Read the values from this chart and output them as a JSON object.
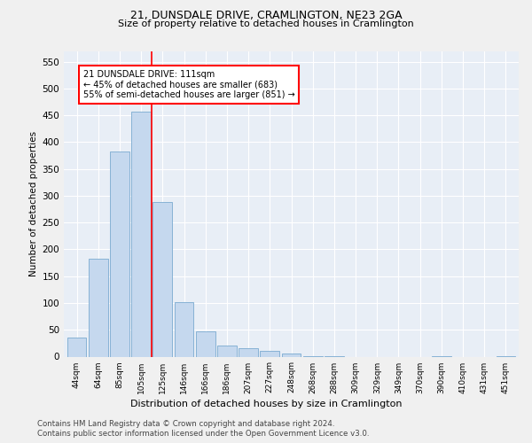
{
  "title": "21, DUNSDALE DRIVE, CRAMLINGTON, NE23 2GA",
  "subtitle": "Size of property relative to detached houses in Cramlington",
  "xlabel": "Distribution of detached houses by size in Cramlington",
  "ylabel": "Number of detached properties",
  "bar_color": "#c5d8ee",
  "bar_edge_color": "#7aaad0",
  "background_color": "#e8eef6",
  "fig_background": "#f0f0f0",
  "categories": [
    "44sqm",
    "64sqm",
    "85sqm",
    "105sqm",
    "125sqm",
    "146sqm",
    "166sqm",
    "186sqm",
    "207sqm",
    "227sqm",
    "248sqm",
    "268sqm",
    "288sqm",
    "309sqm",
    "329sqm",
    "349sqm",
    "370sqm",
    "390sqm",
    "410sqm",
    "431sqm",
    "451sqm"
  ],
  "values": [
    35,
    183,
    383,
    457,
    288,
    102,
    47,
    20,
    15,
    10,
    6,
    1,
    1,
    0,
    0,
    0,
    0,
    1,
    0,
    0,
    1
  ],
  "red_line_x": 3.5,
  "annotation_title": "21 DUNSDALE DRIVE: 111sqm",
  "annotation_line1": "← 45% of detached houses are smaller (683)",
  "annotation_line2": "55% of semi-detached houses are larger (851) →",
  "ylim": [
    0,
    570
  ],
  "yticks": [
    0,
    50,
    100,
    150,
    200,
    250,
    300,
    350,
    400,
    450,
    500,
    550
  ],
  "footer1": "Contains HM Land Registry data © Crown copyright and database right 2024.",
  "footer2": "Contains public sector information licensed under the Open Government Licence v3.0."
}
